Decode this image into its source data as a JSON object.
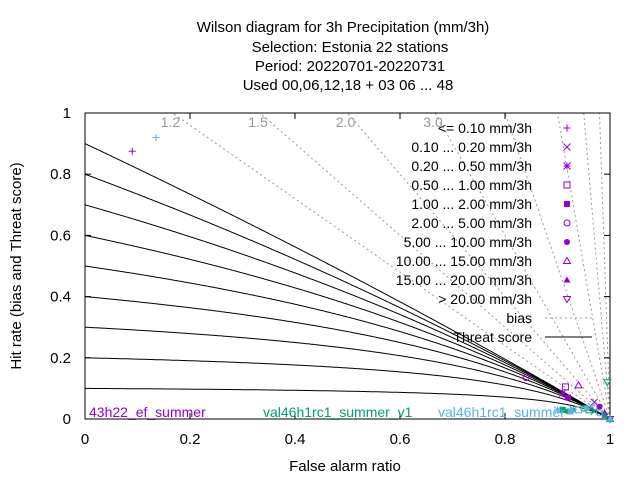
{
  "title": {
    "line1": "Wilson diagram  for 3h Precipitation (mm/3h)",
    "line2": "Selection: Estonia      22 stations",
    "line3": "Period: 20220701-20220731",
    "line4": "Used  00,06,12,18  + 03 06 ... 48"
  },
  "chart_data": {
    "type": "scatter",
    "xlabel": "False alarm ratio",
    "ylabel": "Hit rate (bias and Threat score)",
    "xlim": [
      0,
      1
    ],
    "ylim": [
      0,
      1
    ],
    "x_ticks": [
      "0",
      "0.2",
      "0.4",
      "0.6",
      "0.8",
      "1"
    ],
    "y_ticks": [
      "0",
      "0.2",
      "0.4",
      "0.6",
      "0.8",
      "1"
    ],
    "bias_lines": [
      {
        "value": 1.2,
        "label": "1.2"
      },
      {
        "value": 1.5,
        "label": "1.5"
      },
      {
        "value": 2.0,
        "label": "2.0"
      },
      {
        "value": 3.0,
        "label": "3.0"
      },
      {
        "value": 5.0,
        "label": ""
      },
      {
        "value": 10.0,
        "label": ""
      },
      {
        "value": 20.0,
        "label": ""
      },
      {
        "value": 50.0,
        "label": ""
      }
    ],
    "threat_scores": [
      0.1,
      0.2,
      0.3,
      0.4,
      0.5,
      0.6,
      0.7,
      0.8,
      0.9
    ],
    "legend": {
      "position": "top-right",
      "entries": [
        {
          "label": "<= 0.10 mm/3h",
          "marker": "plus"
        },
        {
          "label": "0.10 ... 0.20 mm/3h",
          "marker": "cross"
        },
        {
          "label": "0.20 ... 0.50 mm/3h",
          "marker": "star"
        },
        {
          "label": "0.50 ... 1.00 mm/3h",
          "marker": "square-open"
        },
        {
          "label": "1.00 ... 2.00 mm/3h",
          "marker": "square-filled"
        },
        {
          "label": "2.00 ... 5.00 mm/3h",
          "marker": "circle-open"
        },
        {
          "label": "5.00 ... 10.00 mm/3h",
          "marker": "circle-filled"
        },
        {
          "label": "10.00 ... 15.00 mm/3h",
          "marker": "triangle-open"
        },
        {
          "label": "15.00 ... 20.00 mm/3h",
          "marker": "triangle-filled"
        },
        {
          "label": "> 20.00 mm/3h",
          "marker": "triangle-down-open"
        }
      ],
      "bias_label": "bias",
      "threat_label": "Threat score"
    },
    "series": [
      {
        "name": "43h22_ef_summer",
        "color": "#9400d3",
        "points": [
          {
            "x": 0.09,
            "y": 0.875,
            "marker": "plus"
          },
          {
            "x": 0.84,
            "y": 0.135,
            "marker": "circle-open"
          },
          {
            "x": 0.91,
            "y": 0.085,
            "marker": "star"
          },
          {
            "x": 0.915,
            "y": 0.105,
            "marker": "square-open"
          },
          {
            "x": 0.92,
            "y": 0.07,
            "marker": "square-filled"
          },
          {
            "x": 0.94,
            "y": 0.11,
            "marker": "triangle-open"
          },
          {
            "x": 0.97,
            "y": 0.055,
            "marker": "cross"
          },
          {
            "x": 0.98,
            "y": 0.04,
            "marker": "circle-filled"
          },
          {
            "x": 0.99,
            "y": 0.02,
            "marker": "triangle-filled"
          },
          {
            "x": 1.0,
            "y": 0.0,
            "marker": "triangle-down-open"
          }
        ]
      },
      {
        "name": "val46h1rc1_summer_v1",
        "color": "#009e73",
        "points": [
          {
            "x": 0.91,
            "y": 0.03,
            "marker": "square-filled"
          },
          {
            "x": 0.92,
            "y": 0.025,
            "marker": "circle-filled"
          },
          {
            "x": 0.93,
            "y": 0.03,
            "marker": "star"
          },
          {
            "x": 0.95,
            "y": 0.035,
            "marker": "circle-open"
          },
          {
            "x": 0.96,
            "y": 0.03,
            "marker": "square-open"
          },
          {
            "x": 0.97,
            "y": 0.025,
            "marker": "cross"
          },
          {
            "x": 0.99,
            "y": 0.012,
            "marker": "triangle-filled"
          },
          {
            "x": 1.0,
            "y": 0.0,
            "marker": "triangle-open"
          },
          {
            "x": 0.995,
            "y": 0.12,
            "marker": "triangle-down-open"
          }
        ]
      },
      {
        "name": "val46h1rc1_summer",
        "color": "#56b4e9",
        "points": [
          {
            "x": 0.135,
            "y": 0.92,
            "marker": "plus"
          },
          {
            "x": 0.9,
            "y": 0.03,
            "marker": "star"
          },
          {
            "x": 0.925,
            "y": 0.025,
            "marker": "square-filled"
          },
          {
            "x": 0.94,
            "y": 0.03,
            "marker": "square-open"
          },
          {
            "x": 0.955,
            "y": 0.035,
            "marker": "circle-filled"
          },
          {
            "x": 0.965,
            "y": 0.04,
            "marker": "cross"
          },
          {
            "x": 0.98,
            "y": 0.02,
            "marker": "circle-open"
          },
          {
            "x": 1.0,
            "y": 0.0,
            "marker": "triangle-filled"
          }
        ]
      }
    ]
  }
}
